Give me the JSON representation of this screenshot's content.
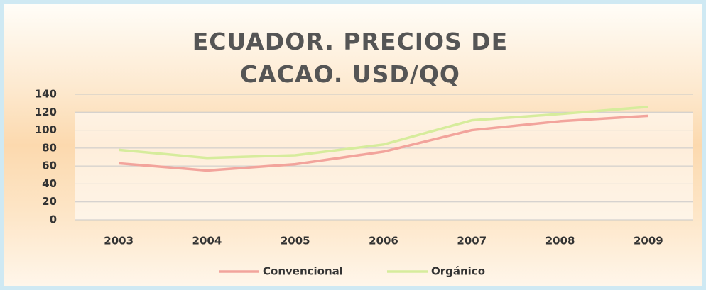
{
  "chart_data": {
    "type": "line",
    "title": "ECUADOR. PRECIOS DE CACAO. USD/QQ",
    "categories": [
      "2003",
      "2004",
      "2005",
      "2006",
      "2007",
      "2008",
      "2009"
    ],
    "series": [
      {
        "name": "Convencional",
        "color": "#f2a49c",
        "values": [
          63,
          55,
          62,
          76,
          100,
          110,
          116
        ]
      },
      {
        "name": "Orgánico",
        "color": "#d6ec9c",
        "values": [
          78,
          69,
          72,
          84,
          111,
          118,
          126
        ]
      }
    ],
    "ylim": [
      0,
      140
    ],
    "yticks": [
      0,
      20,
      40,
      60,
      80,
      100,
      120,
      140
    ],
    "grid": true,
    "legend": "bottom"
  }
}
